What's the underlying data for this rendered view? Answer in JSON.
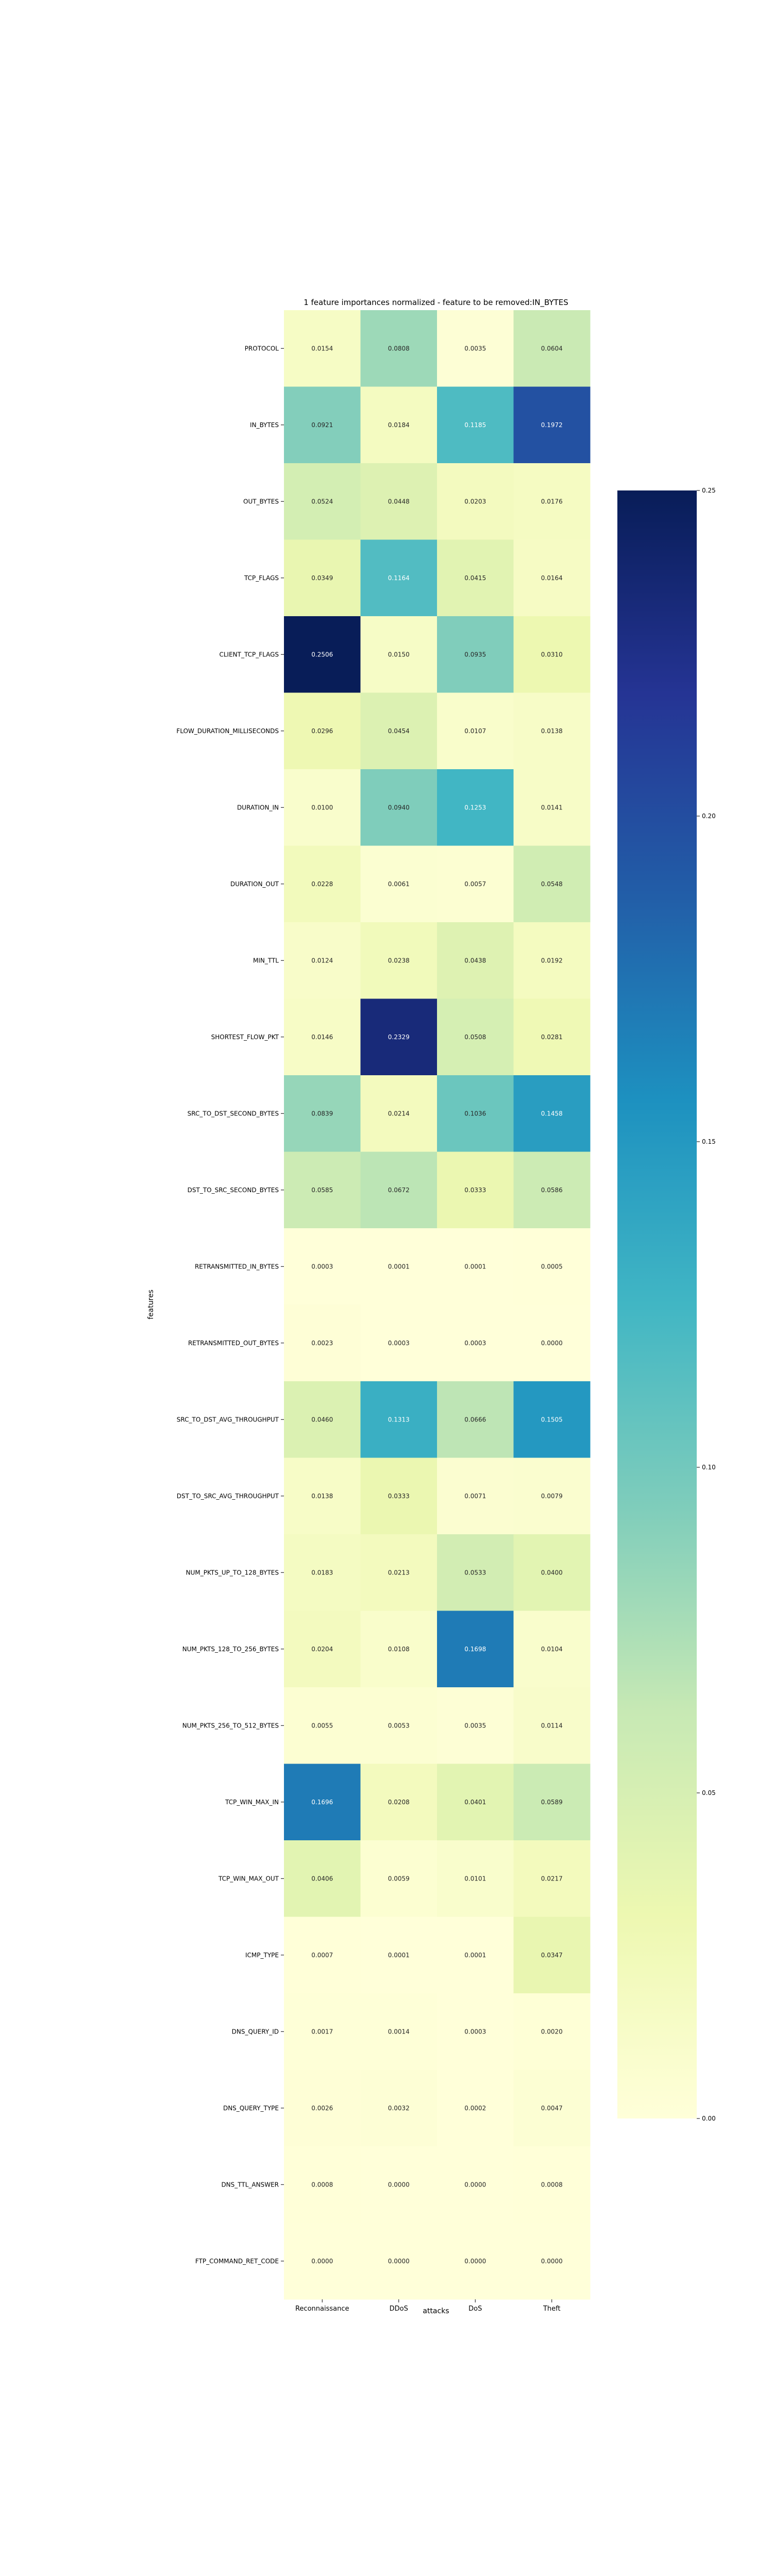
{
  "chart_data": {
    "type": "heatmap",
    "title": "1 feature importances normalized - feature to be removed:IN_BYTES",
    "xlabel": "attacks",
    "ylabel": "features",
    "columns": [
      "Reconnaissance",
      "DDoS",
      "DoS",
      "Theft"
    ],
    "rows": [
      "PROTOCOL",
      "IN_BYTES",
      "OUT_BYTES",
      "TCP_FLAGS",
      "CLIENT_TCP_FLAGS",
      "FLOW_DURATION_MILLISECONDS",
      "DURATION_IN",
      "DURATION_OUT",
      "MIN_TTL",
      "SHORTEST_FLOW_PKT",
      "SRC_TO_DST_SECOND_BYTES",
      "DST_TO_SRC_SECOND_BYTES",
      "RETRANSMITTED_IN_BYTES",
      "RETRANSMITTED_OUT_BYTES",
      "SRC_TO_DST_AVG_THROUGHPUT",
      "DST_TO_SRC_AVG_THROUGHPUT",
      "NUM_PKTS_UP_TO_128_BYTES",
      "NUM_PKTS_128_TO_256_BYTES",
      "NUM_PKTS_256_TO_512_BYTES",
      "TCP_WIN_MAX_IN",
      "TCP_WIN_MAX_OUT",
      "ICMP_TYPE",
      "DNS_QUERY_ID",
      "DNS_QUERY_TYPE",
      "DNS_TTL_ANSWER",
      "FTP_COMMAND_RET_CODE"
    ],
    "values": [
      [
        "0.0154",
        "0.0808",
        "0.0035",
        "0.0604"
      ],
      [
        "0.0921",
        "0.0184",
        "0.1185",
        "0.1972"
      ],
      [
        "0.0524",
        "0.0448",
        "0.0203",
        "0.0176"
      ],
      [
        "0.0349",
        "0.1164",
        "0.0415",
        "0.0164"
      ],
      [
        "0.2506",
        "0.0150",
        "0.0935",
        "0.0310"
      ],
      [
        "0.0296",
        "0.0454",
        "0.0107",
        "0.0138"
      ],
      [
        "0.0100",
        "0.0940",
        "0.1253",
        "0.0141"
      ],
      [
        "0.0228",
        "0.0061",
        "0.0057",
        "0.0548"
      ],
      [
        "0.0124",
        "0.0238",
        "0.0438",
        "0.0192"
      ],
      [
        "0.0146",
        "0.2329",
        "0.0508",
        "0.0281"
      ],
      [
        "0.0839",
        "0.0214",
        "0.1036",
        "0.1458"
      ],
      [
        "0.0585",
        "0.0672",
        "0.0333",
        "0.0586"
      ],
      [
        "0.0003",
        "0.0001",
        "0.0001",
        "0.0005"
      ],
      [
        "0.0023",
        "0.0003",
        "0.0003",
        "0.0000"
      ],
      [
        "0.0460",
        "0.1313",
        "0.0666",
        "0.1505"
      ],
      [
        "0.0138",
        "0.0333",
        "0.0071",
        "0.0079"
      ],
      [
        "0.0183",
        "0.0213",
        "0.0533",
        "0.0400"
      ],
      [
        "0.0204",
        "0.0108",
        "0.1698",
        "0.0104"
      ],
      [
        "0.0055",
        "0.0053",
        "0.0035",
        "0.0114"
      ],
      [
        "0.1696",
        "0.0208",
        "0.0401",
        "0.0589"
      ],
      [
        "0.0406",
        "0.0059",
        "0.0101",
        "0.0217"
      ],
      [
        "0.0007",
        "0.0001",
        "0.0001",
        "0.0347"
      ],
      [
        "0.0017",
        "0.0014",
        "0.0003",
        "0.0020"
      ],
      [
        "0.0026",
        "0.0032",
        "0.0002",
        "0.0047"
      ],
      [
        "0.0008",
        "0.0000",
        "0.0000",
        "0.0008"
      ],
      [
        "0.0000",
        "0.0000",
        "0.0000",
        "0.0000"
      ]
    ],
    "colorbar": {
      "colormap": "YlGnBu",
      "range": [
        0.0,
        0.25
      ],
      "ticks": [
        "0.00",
        "0.05",
        "0.10",
        "0.15",
        "0.20",
        "0.25"
      ]
    }
  }
}
